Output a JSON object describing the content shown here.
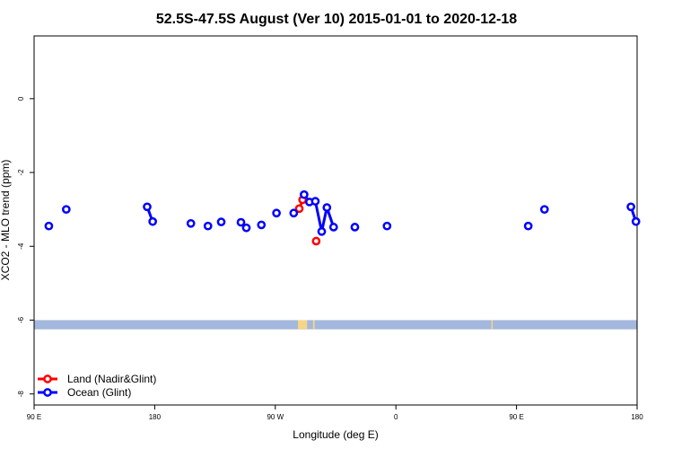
{
  "chart_data": {
    "type": "line",
    "title": "52.5S-47.5S August (Ver 10)   2015-01-01 to 2020-12-18",
    "xlabel": "Longitude (deg E)",
    "ylabel": "XCO2 - MLO trend (ppm)",
    "xlim": [
      90,
      450
    ],
    "ylim": [
      -8.3,
      1.7
    ],
    "x_ticks": [
      {
        "value": 90,
        "label": "90 E"
      },
      {
        "value": 162,
        "label": "180"
      },
      {
        "value": 234,
        "label": "90 W"
      },
      {
        "value": 306,
        "label": "0"
      },
      {
        "value": 378,
        "label": "90 E"
      },
      {
        "value": 450,
        "label": "180"
      }
    ],
    "y_ticks": [
      {
        "value": 0,
        "label": "0"
      },
      {
        "value": -2,
        "label": "-2"
      },
      {
        "value": -4,
        "label": "-4"
      },
      {
        "value": -6,
        "label": "-6"
      },
      {
        "value": -8,
        "label": "-8"
      }
    ],
    "band": {
      "y_from": -6.0,
      "y_to": -6.25,
      "color": "#a3b8dc",
      "land_color": "#f5d58a",
      "land_segments": [
        [
          247.5,
          253.0
        ],
        [
          256.5,
          257.5
        ],
        [
          363.0,
          363.8
        ]
      ]
    },
    "series": [
      {
        "name": "Land (Nadir&Glint)",
        "color": "#ff0000",
        "segments": [
          [
            [
              248.3,
              -2.98
            ],
            [
              250.3,
              -2.74
            ]
          ],
          [
            [
              258.4,
              -3.86
            ]
          ]
        ]
      },
      {
        "name": "Ocean (Glint)",
        "color": "#0000ff",
        "segments": [
          [
            [
              98.8,
              -3.45
            ]
          ],
          [
            [
              109.2,
              -3.0
            ]
          ],
          [
            [
              157.5,
              -2.93
            ],
            [
              160.8,
              -3.33
            ]
          ],
          [
            [
              183.6,
              -3.38
            ]
          ],
          [
            [
              193.8,
              -3.45
            ]
          ],
          [
            [
              201.7,
              -3.34
            ]
          ],
          [
            [
              213.5,
              -3.35
            ],
            [
              216.7,
              -3.5
            ]
          ],
          [
            [
              225.7,
              -3.42
            ]
          ],
          [
            [
              234.7,
              -3.1
            ]
          ],
          [
            [
              245.0,
              -3.1
            ]
          ],
          [
            [
              251.2,
              -2.6
            ],
            [
              254.4,
              -2.8
            ],
            [
              257.9,
              -2.78
            ],
            [
              261.7,
              -3.6
            ],
            [
              264.8,
              -2.95
            ],
            [
              268.8,
              -3.48
            ]
          ],
          [
            [
              281.5,
              -3.48
            ]
          ],
          [
            [
              300.7,
              -3.45
            ]
          ],
          [
            [
              385.0,
              -3.45
            ]
          ],
          [
            [
              394.7,
              -3.0
            ]
          ],
          [
            [
              446.3,
              -2.93
            ],
            [
              449.3,
              -3.33
            ]
          ]
        ]
      }
    ],
    "legend": {
      "position": "bottom-left"
    }
  }
}
